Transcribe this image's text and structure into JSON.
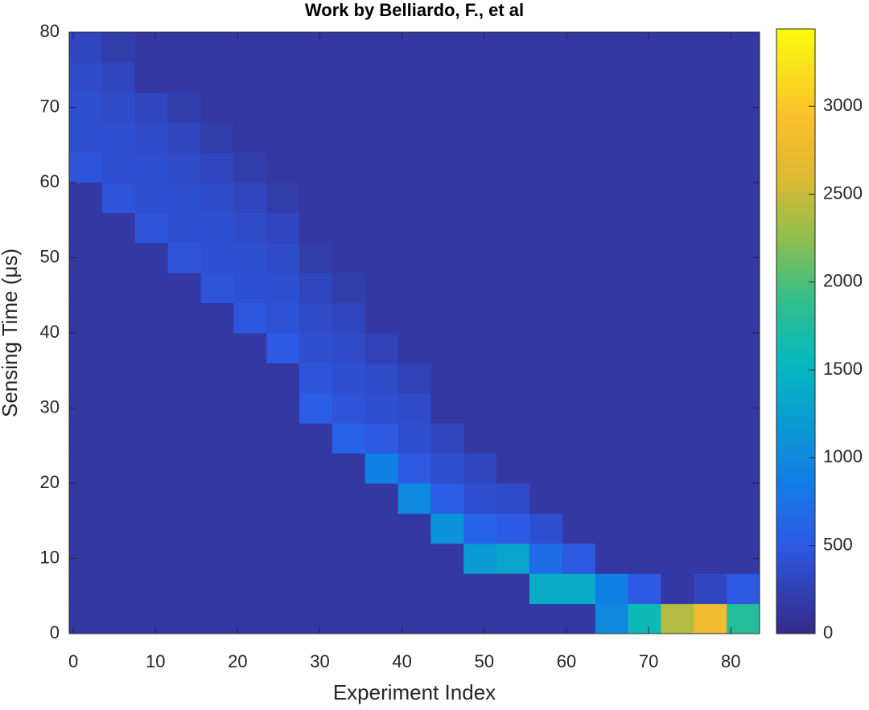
{
  "chart_data": {
    "type": "heatmap",
    "title": "Work by Belliardo, F., et al",
    "xlabel": "Experiment Index",
    "ylabel": "Sensing Time (μs)",
    "xlim": [
      -0.5,
      83.5
    ],
    "ylim": [
      0,
      80
    ],
    "xticks": [
      0,
      10,
      20,
      30,
      40,
      50,
      60,
      70,
      80
    ],
    "yticks": [
      0,
      10,
      20,
      30,
      40,
      50,
      60,
      70,
      80
    ],
    "xbins": [
      -0.5,
      3.5,
      7.5,
      11.5,
      15.5,
      19.5,
      23.5,
      27.5,
      31.5,
      35.5,
      39.5,
      43.5,
      47.5,
      51.5,
      55.5,
      59.5,
      63.5,
      67.5,
      71.5,
      75.5,
      79.5,
      83.5
    ],
    "ybins": [
      0,
      4,
      8,
      12,
      16,
      20,
      24,
      28,
      32,
      36,
      40,
      44,
      48,
      52,
      56,
      60,
      64,
      68,
      72,
      76,
      80
    ],
    "z": [
      [
        150,
        150,
        150,
        150,
        150,
        150,
        150,
        150,
        150,
        150,
        150,
        150,
        150,
        150,
        150,
        150,
        1000,
        1600,
        2400,
        2800,
        1800
      ],
      [
        150,
        150,
        150,
        150,
        150,
        150,
        150,
        150,
        150,
        150,
        150,
        150,
        150,
        150,
        1400,
        1400,
        900,
        500,
        150,
        300,
        500
      ],
      [
        150,
        150,
        150,
        150,
        150,
        150,
        150,
        150,
        150,
        150,
        150,
        150,
        1200,
        1300,
        700,
        500,
        150,
        150,
        150,
        150,
        150
      ],
      [
        150,
        150,
        150,
        150,
        150,
        150,
        150,
        150,
        150,
        150,
        150,
        1100,
        600,
        500,
        400,
        150,
        150,
        150,
        150,
        150,
        150
      ],
      [
        150,
        150,
        150,
        150,
        150,
        150,
        150,
        150,
        150,
        150,
        1000,
        550,
        400,
        350,
        150,
        150,
        150,
        150,
        150,
        150,
        150
      ],
      [
        150,
        150,
        150,
        150,
        150,
        150,
        150,
        150,
        150,
        900,
        500,
        400,
        300,
        150,
        150,
        150,
        150,
        150,
        150,
        150,
        150
      ],
      [
        150,
        150,
        150,
        150,
        150,
        150,
        150,
        150,
        600,
        500,
        400,
        300,
        150,
        150,
        150,
        150,
        150,
        150,
        150,
        150,
        150
      ],
      [
        150,
        150,
        150,
        150,
        150,
        150,
        150,
        550,
        450,
        400,
        350,
        150,
        150,
        150,
        150,
        150,
        150,
        150,
        150,
        150,
        150
      ],
      [
        150,
        150,
        150,
        150,
        150,
        150,
        150,
        450,
        400,
        350,
        250,
        150,
        150,
        150,
        150,
        150,
        150,
        150,
        150,
        150,
        150
      ],
      [
        150,
        150,
        150,
        150,
        150,
        150,
        500,
        400,
        350,
        250,
        150,
        150,
        150,
        150,
        150,
        150,
        150,
        150,
        150,
        150,
        150
      ],
      [
        150,
        150,
        150,
        150,
        150,
        480,
        430,
        350,
        300,
        150,
        150,
        150,
        150,
        150,
        150,
        150,
        150,
        150,
        150,
        150,
        150
      ],
      [
        150,
        150,
        150,
        150,
        450,
        420,
        400,
        300,
        200,
        150,
        150,
        150,
        150,
        150,
        150,
        150,
        150,
        150,
        150,
        150,
        150
      ],
      [
        150,
        150,
        150,
        450,
        420,
        400,
        350,
        200,
        150,
        150,
        150,
        150,
        150,
        150,
        150,
        150,
        150,
        150,
        150,
        150,
        150
      ],
      [
        150,
        150,
        450,
        400,
        400,
        350,
        300,
        150,
        150,
        150,
        150,
        150,
        150,
        150,
        150,
        150,
        150,
        150,
        150,
        150,
        150
      ],
      [
        150,
        450,
        400,
        400,
        350,
        300,
        200,
        150,
        150,
        150,
        150,
        150,
        150,
        150,
        150,
        150,
        150,
        150,
        150,
        150,
        150
      ],
      [
        450,
        400,
        400,
        350,
        300,
        200,
        150,
        150,
        150,
        150,
        150,
        150,
        150,
        150,
        150,
        150,
        150,
        150,
        150,
        150,
        150
      ],
      [
        400,
        400,
        350,
        300,
        200,
        150,
        150,
        150,
        150,
        150,
        150,
        150,
        150,
        150,
        150,
        150,
        150,
        150,
        150,
        150,
        150
      ],
      [
        400,
        350,
        300,
        200,
        150,
        150,
        150,
        150,
        150,
        150,
        150,
        150,
        150,
        150,
        150,
        150,
        150,
        150,
        150,
        150,
        150
      ],
      [
        350,
        300,
        150,
        150,
        150,
        150,
        150,
        150,
        150,
        150,
        150,
        150,
        150,
        150,
        150,
        150,
        150,
        150,
        150,
        150,
        150
      ],
      [
        300,
        200,
        150,
        150,
        150,
        150,
        150,
        150,
        150,
        150,
        150,
        150,
        150,
        150,
        150,
        150,
        150,
        150,
        150,
        150,
        150
      ]
    ],
    "clim": [
      0,
      3440
    ],
    "cticks": [
      0,
      500,
      1000,
      1500,
      2000,
      2500,
      3000
    ]
  }
}
